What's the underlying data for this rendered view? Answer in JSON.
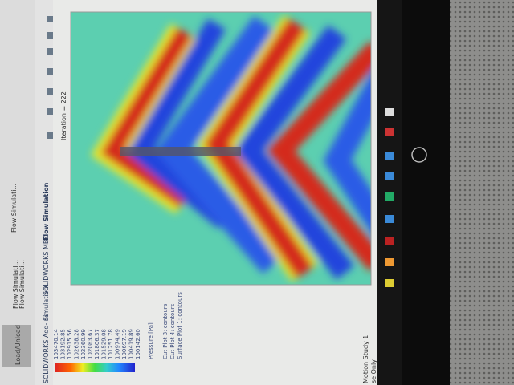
{
  "toolbar": {
    "buttons": [
      "Load/Unload",
      "Flow Simulati...",
      "Flow Simulati...",
      "Flow Simulati..."
    ]
  },
  "tabs": [
    "SOLIDWORKS Add-Ins",
    "Simulation",
    "SOLIDWORKS MBD",
    "Flow Simulation"
  ],
  "viewport": {
    "iteration": "Iteration = 222"
  },
  "legend": {
    "title": "Pressure [Pa]",
    "values": [
      "103470.14",
      "103192.85",
      "102915.56",
      "102638.28",
      "102360.99",
      "102083.67",
      "101806.37",
      "101529.08",
      "101251.78",
      "100974.49",
      "100697.19",
      "100419.89",
      "100142.60"
    ],
    "plots": [
      "Cut Plot 3: contours",
      "Cut Plot 4: contours",
      "Surface Plot 1: contours"
    ]
  },
  "status": {
    "study": "Motion Study 1",
    "mode": "se Only"
  }
}
